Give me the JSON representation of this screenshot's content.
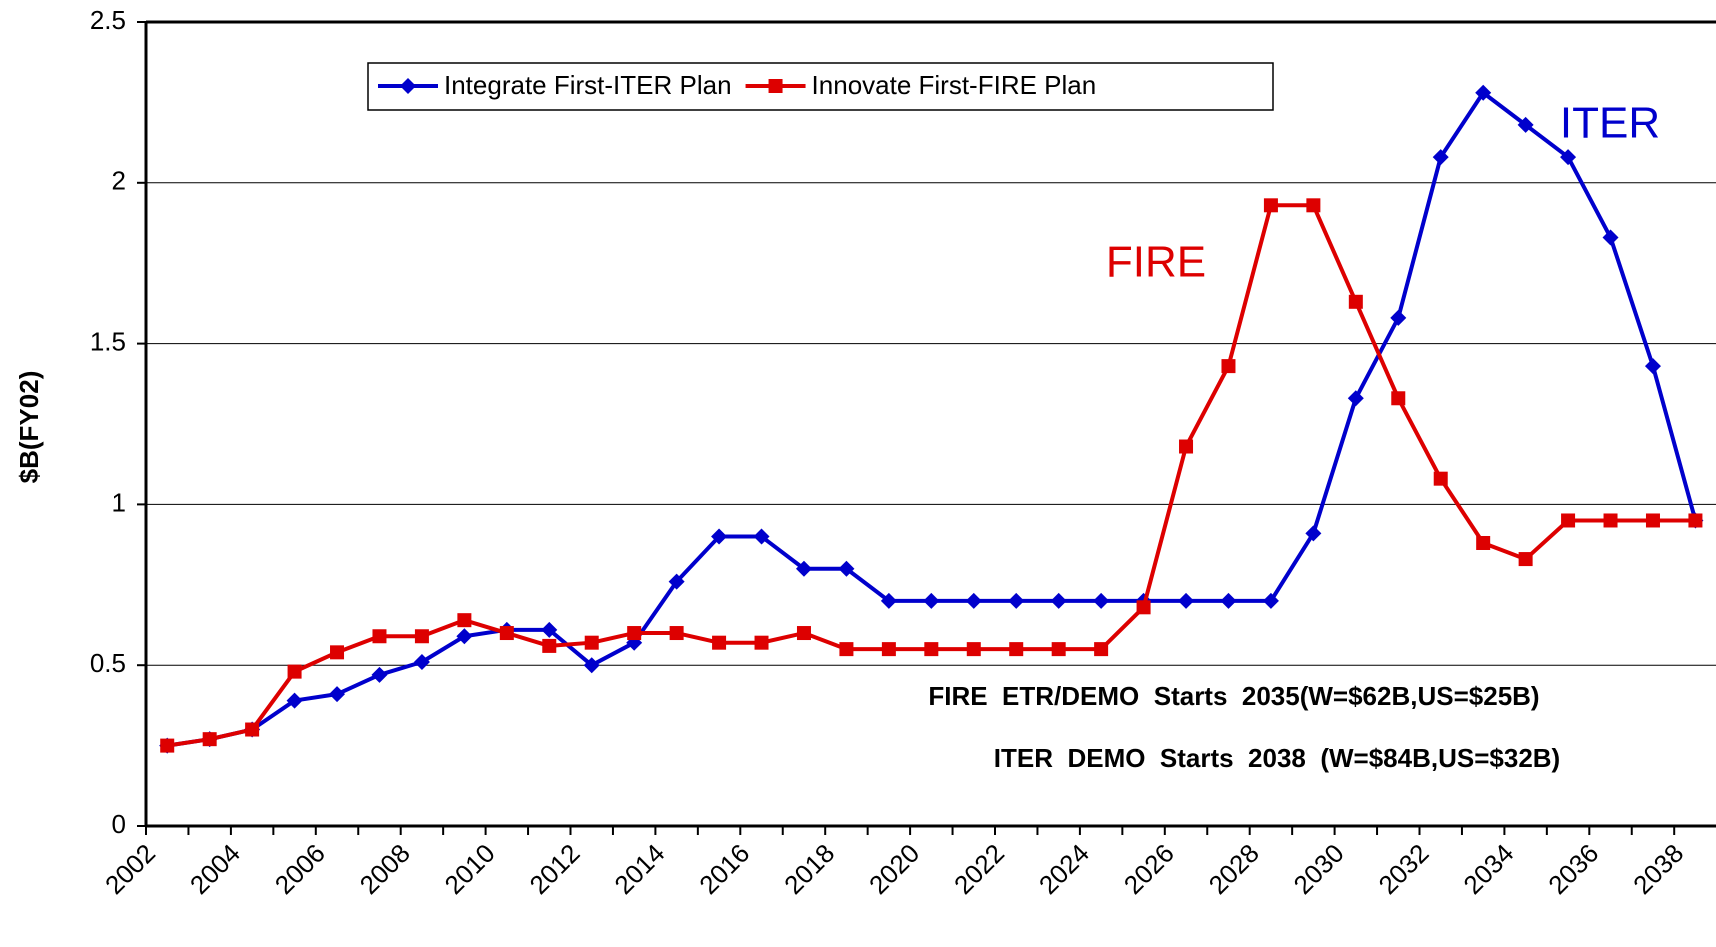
{
  "chart_data": {
    "type": "line",
    "y_label": "$B(FY02)",
    "categories": [
      "2002",
      null,
      "2004",
      null,
      "2006",
      null,
      "2008",
      null,
      "2010",
      null,
      "2012",
      null,
      "2014",
      null,
      "2016",
      null,
      "2018",
      null,
      "2020",
      null,
      "2022",
      null,
      "2024",
      null,
      "2026",
      null,
      "2028",
      null,
      "2030",
      null,
      "2032",
      null,
      "2034",
      null,
      "2036",
      null,
      "2038"
    ],
    "series": [
      {
        "name": "Integrate First-ITER Plan",
        "color": "#0000cc",
        "marker": "diamond",
        "values": [
          0.25,
          0.27,
          0.3,
          0.39,
          0.41,
          0.47,
          0.51,
          0.59,
          0.61,
          0.61,
          0.5,
          0.57,
          0.76,
          0.9,
          0.9,
          0.8,
          0.8,
          0.7,
          0.7,
          0.7,
          0.7,
          0.7,
          0.7,
          0.7,
          0.7,
          0.7,
          0.7,
          0.91,
          1.33,
          1.58,
          2.08,
          2.28,
          2.18,
          2.08,
          1.83,
          1.43,
          0.95
        ]
      },
      {
        "name": "Innovate First-FIRE Plan",
        "color": "#dd0000",
        "marker": "square",
        "values": [
          0.25,
          0.27,
          0.3,
          0.48,
          0.54,
          0.59,
          0.59,
          0.64,
          0.6,
          0.56,
          0.57,
          0.6,
          0.6,
          0.57,
          0.57,
          0.6,
          0.55,
          0.55,
          0.55,
          0.55,
          0.55,
          0.55,
          0.55,
          0.68,
          1.18,
          1.43,
          1.93,
          1.93,
          1.63,
          1.33,
          1.08,
          0.88,
          0.83,
          0.95,
          0.95,
          0.95,
          0.95
        ]
      }
    ],
    "ylim": [
      0,
      2.5
    ],
    "yticks": [
      0,
      0.5,
      1,
      1.5,
      2,
      2.5
    ],
    "grid": true,
    "legend": "top",
    "annotations": [
      {
        "text": "ITER",
        "color": "#0000cc"
      },
      {
        "text": "FIRE",
        "color": "#dd0000"
      },
      {
        "text": "FIRE  ETR/DEMO  Starts  2035(W=$62B,US=$25B)"
      },
      {
        "text": "ITER  DEMO  Starts  2038  (W=$84B,US=$32B)"
      }
    ]
  }
}
